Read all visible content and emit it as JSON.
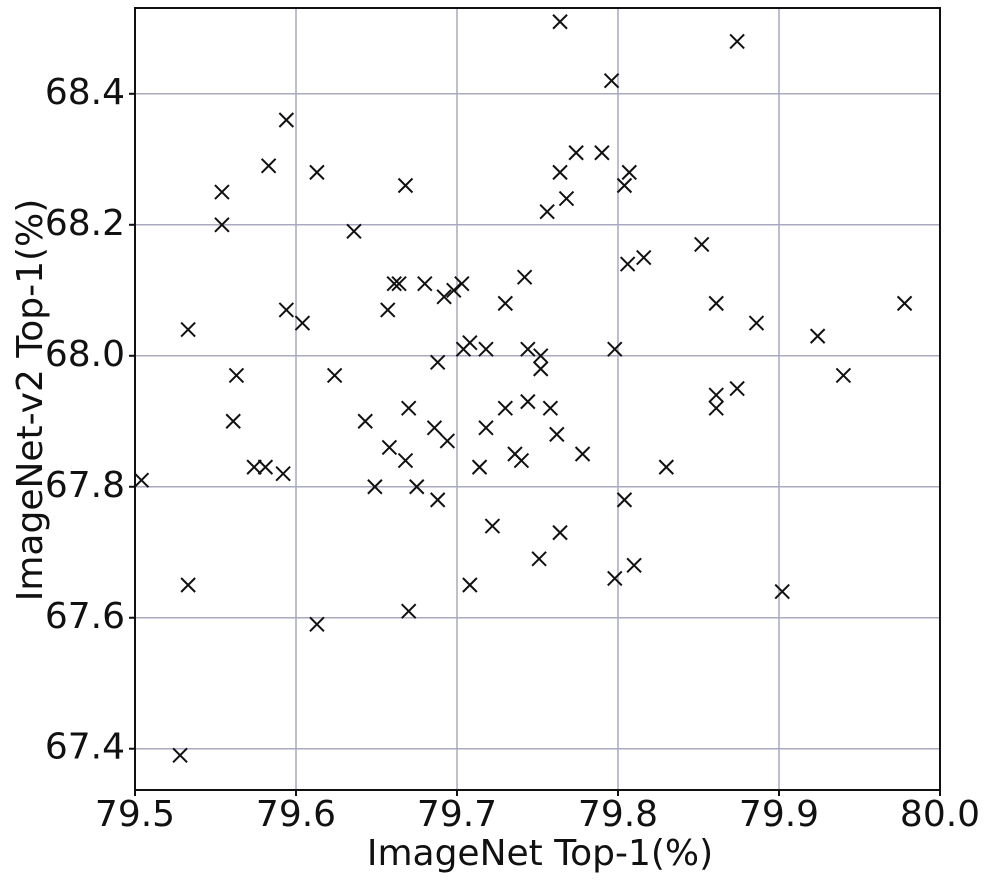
{
  "chart_data": {
    "type": "scatter",
    "x_label": "ImageNet Top-1(%)",
    "y_label": "ImageNet-v2 Top-1(%)",
    "color": "#000000",
    "grid": true,
    "xlim": [
      79.5,
      80.0
    ],
    "ylim": [
      67.337,
      68.531
    ],
    "xticks": [
      79.5,
      79.6,
      79.7,
      79.8,
      79.9,
      {
        "value": 80.0,
        "label": "80.0"
      }
    ],
    "yticks": [
      67.4,
      67.6,
      67.8,
      {
        "value": 68.0,
        "label": "68.0"
      },
      68.2,
      68.4
    ],
    "x": [
      79.504,
      79.528,
      79.533,
      79.533,
      79.554,
      79.554,
      79.563,
      79.561,
      79.574,
      79.581,
      79.592,
      79.583,
      79.594,
      79.594,
      79.604,
      79.613,
      79.613,
      79.624,
      79.636,
      79.643,
      79.649,
      79.657,
      79.658,
      79.661,
      79.664,
      79.668,
      79.668,
      79.67,
      79.67,
      79.675,
      79.68,
      79.686,
      79.688,
      79.688,
      79.692,
      79.694,
      79.698,
      79.703,
      79.704,
      79.708,
      79.708,
      79.714,
      79.718,
      79.718,
      79.722,
      79.73,
      79.73,
      79.736,
      79.74,
      79.742,
      79.744,
      79.744,
      79.751,
      79.752,
      79.752,
      79.756,
      79.758,
      79.762,
      79.764,
      79.764,
      79.764,
      79.768,
      79.774,
      79.778,
      79.79,
      79.796,
      79.798,
      79.798,
      79.804,
      79.804,
      79.806,
      79.807,
      79.81,
      79.816,
      79.83,
      79.852,
      79.861,
      79.861,
      79.861,
      79.874,
      79.874,
      79.886,
      79.902,
      79.924,
      79.94,
      79.978
    ],
    "values": [
      67.81,
      67.39,
      67.65,
      68.04,
      68.25,
      68.2,
      67.97,
      67.9,
      67.83,
      67.83,
      67.82,
      68.29,
      68.36,
      68.07,
      68.05,
      68.28,
      67.59,
      67.97,
      68.19,
      67.9,
      67.8,
      68.07,
      67.86,
      68.11,
      68.11,
      68.26,
      67.84,
      67.92,
      67.61,
      67.8,
      68.11,
      67.89,
      67.99,
      67.78,
      68.09,
      67.87,
      68.1,
      68.11,
      68.01,
      68.02,
      67.65,
      67.83,
      68.01,
      67.89,
      67.74,
      68.08,
      67.92,
      67.85,
      67.84,
      68.12,
      68.01,
      67.93,
      67.69,
      68.0,
      67.98,
      68.22,
      67.92,
      67.88,
      68.28,
      68.51,
      67.73,
      68.24,
      68.31,
      67.85,
      68.31,
      68.42,
      68.01,
      67.66,
      68.26,
      67.78,
      68.14,
      68.28,
      67.68,
      68.15,
      67.83,
      68.17,
      68.08,
      67.94,
      67.92,
      67.95,
      68.48,
      68.05,
      67.64,
      68.03,
      67.97,
      68.08
    ]
  }
}
